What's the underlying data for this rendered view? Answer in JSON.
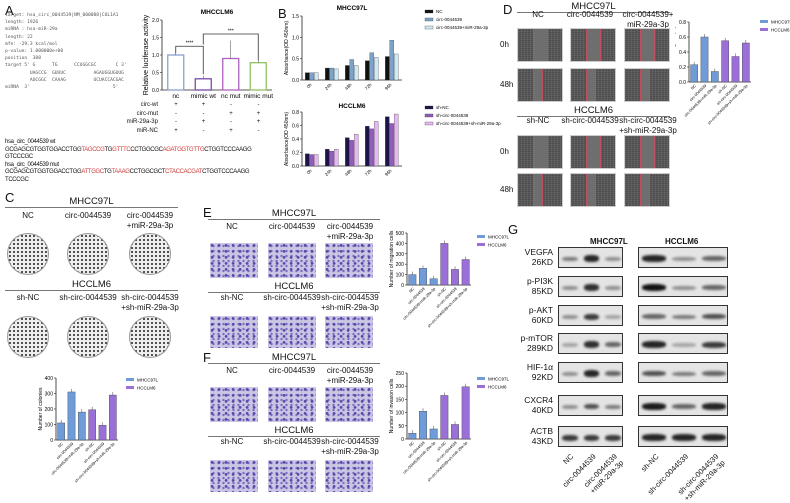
{
  "panels": {
    "A": "A",
    "B": "B",
    "C": "C",
    "D": "D",
    "E": "E",
    "F": "F",
    "G": "G"
  },
  "panelA": {
    "target_info": [
      "target: hsa_circ_0044539|NM_000088|COL1A1",
      "",
      "length: 1926",
      "miRNA : hsa-miR-29a",
      "length: 22",
      "mfe: -29.3 kcal/mol",
      "p-value: 1.000000e+00",
      "position  388",
      "target 5' G      TG      CCUGGCGC       C 3'",
      "         UAGCCG  GUUUC          AGAUGGUGUUG",
      "         AUCGGC  CAAAG          UCUACCACGAC",
      "miRNA  3'                              5'"
    ],
    "table_rows": [
      {
        "label": "circ-wt",
        "values": [
          "+",
          "+",
          "-",
          "-"
        ]
      },
      {
        "label": "circ-mut",
        "values": [
          "-",
          "-",
          "+",
          "+"
        ]
      },
      {
        "label": "miR-29a-3p",
        "values": [
          "-",
          "+",
          "-",
          "+"
        ]
      },
      {
        "label": "miR-NC",
        "values": [
          "+",
          "-",
          "+",
          "-"
        ]
      }
    ],
    "wt_label": "hsa_circ_0044539 wt",
    "wt_seq": [
      {
        "t": "GCGAGCGTGGTGGACCTGG",
        "r": false
      },
      {
        "t": "TAGCCG",
        "r": true
      },
      {
        "t": "TG",
        "r": false
      },
      {
        "t": "GTTTC",
        "r": true
      },
      {
        "t": "CCTGGCGC",
        "r": false
      },
      {
        "t": "AGATGGTGTTG",
        "r": true
      },
      {
        "t": "CTGGTCCCAAGG",
        "r": false
      }
    ],
    "wt_seq2": "GTCCCGC",
    "mut_label": "hsa_circ_0044539 mut",
    "mut_seq": [
      {
        "t": "GCGAGCGTGGTGGACCTGG",
        "r": false
      },
      {
        "t": "ATTGGC",
        "r": true
      },
      {
        "t": "TG",
        "r": false
      },
      {
        "t": "TAAAG",
        "r": true
      },
      {
        "t": "CCTGGCGCT",
        "r": false
      },
      {
        "t": "CTACCACGAT",
        "r": true
      },
      {
        "t": "CTGGTCCCAAGG",
        "r": false
      }
    ],
    "mut_seq2": "TCCCGC"
  },
  "conditions": {
    "mhcc": [
      "NC",
      "circ-0044539",
      "circ-0044539\n+miR-29a-3p"
    ],
    "mhcc_d": [
      "NC",
      "circ-0044539",
      "circ-0044539+\nmiR-29a-3p"
    ],
    "hcc": [
      "sh-NC",
      "sh-circ-0044539",
      "sh-circ-0044539\n+sh-miR-29a-3p"
    ],
    "cell1": "MHCC97L",
    "cell2": "HCCLM6",
    "t0": "0h",
    "t48": "48h"
  },
  "blots": {
    "title1": "MHCC97L",
    "title2": "HCCLM6",
    "rows": [
      {
        "name": "VEGFA",
        "kd": "26KD",
        "l": [
          0.5,
          0.9,
          0.4
        ],
        "r": [
          0.9,
          0.4,
          0.6
        ]
      },
      {
        "name": "p-PI3K",
        "kd": "85KD",
        "l": [
          0.4,
          0.85,
          0.4
        ],
        "r": [
          1,
          0.4,
          0.6
        ]
      },
      {
        "name": "p-AKT",
        "kd": "60KD",
        "l": [
          0.4,
          0.8,
          0.3
        ],
        "r": [
          0.6,
          0.5,
          0.7
        ]
      },
      {
        "name": "p-mTOR",
        "kd": "289KD",
        "l": [
          0.3,
          0.85,
          0.6
        ],
        "r": [
          0.9,
          0.3,
          0.8
        ]
      },
      {
        "name": "HIF-1α",
        "kd": "92KD",
        "l": [
          0.4,
          0.9,
          0.6
        ],
        "r": [
          0.7,
          0.5,
          0.6
        ]
      },
      {
        "name": "CXCR4",
        "kd": "40KD",
        "l": [
          0.4,
          0.7,
          0.5
        ],
        "r": [
          0.95,
          0.6,
          0.9
        ]
      },
      {
        "name": "ACTB",
        "kd": "43KD",
        "l": [
          0.8,
          0.8,
          0.8
        ],
        "r": [
          0.9,
          0.9,
          0.9
        ]
      }
    ],
    "lanes1": [
      "NC",
      "circ-0044539",
      "circ-0044539\n+miR-29a-3p"
    ],
    "lanes2": [
      "sh-NC",
      "sh-circ-0044539",
      "sh-circ-0044539\n+sh-miR-29a-3p"
    ]
  },
  "chart_data": [
    {
      "id": "A",
      "type": "bar",
      "title": "MHCCLM6",
      "ylabel": "Relative luciferase activity",
      "categories": [
        "nc",
        "mimic wt",
        "nc mut",
        "mimic mut"
      ],
      "values": [
        1.0,
        0.32,
        0.9,
        0.78
      ],
      "ylim": [
        0,
        2
      ],
      "yticks": [
        "0.0",
        "0.5",
        "1.0",
        "1.5",
        "2.0"
      ],
      "colors": [
        "#8ca0d0",
        "#7a4ab0",
        "#b060c0",
        "#90c060"
      ],
      "annotations": [
        "****",
        "***"
      ]
    },
    {
      "id": "B1",
      "type": "bar",
      "title": "MHCC97L",
      "ylabel": "Absorbance(OD 450nm)",
      "categories": [
        "0h",
        "24h",
        "48h",
        "72h",
        "96h"
      ],
      "ylim": [
        0,
        1.5
      ],
      "yticks": [
        "0.0",
        "0.5",
        "1.0",
        "1.5"
      ],
      "legend": "right",
      "series": [
        {
          "name": "NC",
          "color": "#111111",
          "values": [
            0.17,
            0.28,
            0.34,
            0.45,
            0.55
          ]
        },
        {
          "name": "circ-0044539",
          "color": "#7ea3c8",
          "values": [
            0.17,
            0.28,
            0.48,
            0.64,
            0.93
          ]
        },
        {
          "name": "circ-0044539+miR-29a-3p",
          "color": "#cfe8f5",
          "values": [
            0.17,
            0.26,
            0.34,
            0.53,
            0.61
          ]
        }
      ]
    },
    {
      "id": "B2",
      "type": "bar",
      "title": "HCCLM6",
      "ylabel": "Absorbance(OD 450nm)",
      "categories": [
        "0h",
        "24h",
        "48h",
        "72h",
        "96h"
      ],
      "ylim": [
        0,
        0.8
      ],
      "yticks": [
        "0.0",
        "0.2",
        "0.4",
        "0.6",
        "0.8"
      ],
      "legend": "right",
      "series": [
        {
          "name": "sh-NC",
          "color": "#1c1446",
          "values": [
            0.18,
            0.25,
            0.42,
            0.59,
            0.73
          ]
        },
        {
          "name": "sh-circ-0044539",
          "color": "#8f5fb8",
          "values": [
            0.17,
            0.22,
            0.38,
            0.55,
            0.63
          ]
        },
        {
          "name": "sh-circ-0044539+sh-miR-29a-3p",
          "color": "#e6b7f0",
          "values": [
            0.17,
            0.25,
            0.47,
            0.66,
            0.77
          ]
        }
      ]
    },
    {
      "id": "D",
      "type": "bar",
      "ylabel": "Wound healing rate(%)",
      "categories": [
        "NC",
        "circ-0044539",
        "circ-0044539+miR-29a-3p",
        "sh-NC",
        "sh-circ-0044539",
        "sh-circ-0044539+sh-miR-29a-3p"
      ],
      "values": [
        0.23,
        0.6,
        0.14,
        0.55,
        0.34,
        0.52
      ],
      "ylim": [
        0,
        0.8
      ],
      "yticks": [
        "0.0",
        "0.2",
        "0.4",
        "0.6",
        "0.8"
      ],
      "legend": [
        "MHCC97L",
        "HCCLM6"
      ]
    },
    {
      "id": "C",
      "type": "bar",
      "ylabel": "Number of colonies",
      "categories": [
        "NC",
        "circ-0044539",
        "circ-0044539+miR-29a-3p",
        "sh-NC",
        "sh-circ-0044539",
        "sh-circ-0044539+sh-miR-29a-3p"
      ],
      "values": [
        110,
        310,
        180,
        195,
        95,
        290
      ],
      "ylim": [
        0,
        400
      ],
      "yticks": [
        "0",
        "100",
        "200",
        "300",
        "400"
      ],
      "legend": [
        "MHCC97L",
        "HCCLM6"
      ]
    },
    {
      "id": "E",
      "type": "bar",
      "ylabel": "Number of migration cells",
      "categories": [
        "NC",
        "circ-0044539",
        "circ-0044539+miR-29a-3p",
        "sh-NC",
        "sh-circ-0044539",
        "sh-circ-0044539+sh-miR-29a-3p"
      ],
      "values": [
        100,
        160,
        60,
        400,
        150,
        245
      ],
      "ylim": [
        0,
        500
      ],
      "yticks": [
        "0",
        "100",
        "200",
        "300",
        "400",
        "500"
      ],
      "legend": [
        "MHCC97L",
        "HCCLM6"
      ]
    },
    {
      "id": "F",
      "type": "bar",
      "ylabel": "Number of invasion cells",
      "categories": [
        "NC",
        "circ-0044539",
        "circ-0044539+miR-29a-3p",
        "sh-NC",
        "sh-circ-0044539",
        "sh-circ-0044539+sh-miR-29a-3p"
      ],
      "values": [
        22,
        105,
        38,
        165,
        55,
        198
      ],
      "ylim": [
        0,
        250
      ],
      "yticks": [
        "0",
        "50",
        "100",
        "150",
        "200",
        "250"
      ],
      "legend": [
        "MHCC97L",
        "HCCLM6"
      ]
    }
  ],
  "colors": {
    "MHCC97L": "#6f9bd8",
    "HCCLM6": "#9b6fd8"
  }
}
